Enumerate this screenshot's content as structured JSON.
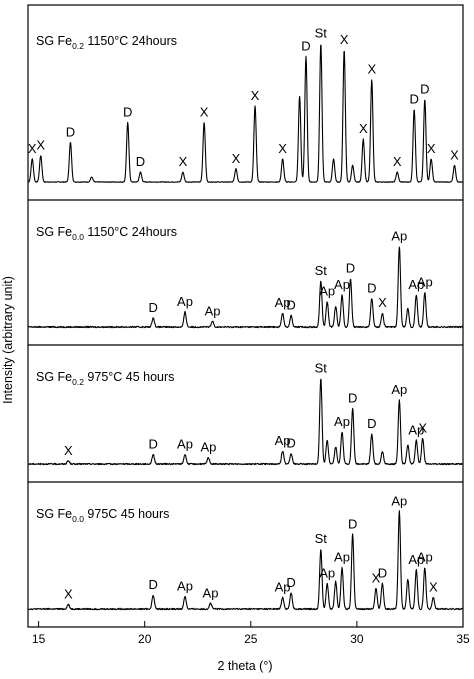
{
  "chart_data": {
    "type": "line",
    "xlabel": "2 theta (°)",
    "ylabel": "Intensity (arbitrary unit)",
    "xlim": [
      14.5,
      35
    ],
    "xticks": [
      15,
      20,
      25,
      30,
      35
    ],
    "panels": [
      {
        "title": {
          "prefix": "SG Fe",
          "subscript": "0.2",
          "suffix": " 1150°C 24hours"
        },
        "peaks": [
          {
            "x": 14.7,
            "h": 0.14,
            "label": "X"
          },
          {
            "x": 15.1,
            "h": 0.16,
            "label": "X"
          },
          {
            "x": 16.5,
            "h": 0.24,
            "label": "D"
          },
          {
            "x": 17.5,
            "h": 0.03
          },
          {
            "x": 19.2,
            "h": 0.36,
            "label": "D"
          },
          {
            "x": 19.8,
            "h": 0.06,
            "label": "D"
          },
          {
            "x": 21.8,
            "h": 0.06,
            "label": "X"
          },
          {
            "x": 22.8,
            "h": 0.36,
            "label": "X"
          },
          {
            "x": 24.3,
            "h": 0.08,
            "label": "X"
          },
          {
            "x": 25.2,
            "h": 0.46,
            "label": "X"
          },
          {
            "x": 26.5,
            "h": 0.14,
            "label": "X"
          },
          {
            "x": 27.3,
            "h": 0.52
          },
          {
            "x": 27.6,
            "h": 0.76,
            "label": "D"
          },
          {
            "x": 28.3,
            "h": 0.84,
            "label": "St"
          },
          {
            "x": 28.9,
            "h": 0.14
          },
          {
            "x": 29.4,
            "h": 0.8,
            "label": "X"
          },
          {
            "x": 29.8,
            "h": 0.1
          },
          {
            "x": 30.3,
            "h": 0.26,
            "label": "X"
          },
          {
            "x": 30.7,
            "h": 0.62,
            "label": "X"
          },
          {
            "x": 31.9,
            "h": 0.06,
            "label": "X"
          },
          {
            "x": 32.7,
            "h": 0.44,
            "label": "D"
          },
          {
            "x": 33.2,
            "h": 0.5,
            "label": "D"
          },
          {
            "x": 33.5,
            "h": 0.14,
            "label": "X"
          },
          {
            "x": 34.6,
            "h": 0.1,
            "label": "X"
          }
        ]
      },
      {
        "title": {
          "prefix": "SG Fe",
          "subscript": "0.0",
          "suffix": " 1150°C 24hours"
        },
        "peaks": [
          {
            "x": 20.4,
            "h": 0.08,
            "label": "D"
          },
          {
            "x": 21.9,
            "h": 0.13,
            "label": "Ap"
          },
          {
            "x": 23.2,
            "h": 0.05,
            "label": "Ap"
          },
          {
            "x": 26.5,
            "h": 0.12,
            "label": "Ap"
          },
          {
            "x": 26.9,
            "h": 0.1,
            "label": "D"
          },
          {
            "x": 28.3,
            "h": 0.4,
            "label": "St"
          },
          {
            "x": 28.6,
            "h": 0.22,
            "label": "Ap"
          },
          {
            "x": 29.0,
            "h": 0.18
          },
          {
            "x": 29.3,
            "h": 0.28,
            "label": "Ap"
          },
          {
            "x": 29.7,
            "h": 0.42,
            "label": "D"
          },
          {
            "x": 30.7,
            "h": 0.25,
            "label": "D"
          },
          {
            "x": 31.2,
            "h": 0.12,
            "label": "X"
          },
          {
            "x": 32.0,
            "h": 0.7,
            "label": "Ap"
          },
          {
            "x": 32.4,
            "h": 0.16
          },
          {
            "x": 32.8,
            "h": 0.28,
            "label": "Ap"
          },
          {
            "x": 33.2,
            "h": 0.3,
            "label": "Ap"
          }
        ]
      },
      {
        "title": {
          "prefix": "SG Fe",
          "subscript": "0.2",
          "suffix": " 975°C 45 hours"
        },
        "peaks": [
          {
            "x": 16.4,
            "h": 0.03,
            "label": "X"
          },
          {
            "x": 20.4,
            "h": 0.09,
            "label": "D"
          },
          {
            "x": 21.9,
            "h": 0.09,
            "label": "Ap"
          },
          {
            "x": 23.0,
            "h": 0.06,
            "label": "Ap"
          },
          {
            "x": 26.5,
            "h": 0.12,
            "label": "Ap"
          },
          {
            "x": 26.9,
            "h": 0.1,
            "label": "D"
          },
          {
            "x": 28.3,
            "h": 0.8,
            "label": "St"
          },
          {
            "x": 28.6,
            "h": 0.22
          },
          {
            "x": 29.0,
            "h": 0.16
          },
          {
            "x": 29.3,
            "h": 0.3,
            "label": "Ap"
          },
          {
            "x": 29.8,
            "h": 0.52,
            "label": "D"
          },
          {
            "x": 30.7,
            "h": 0.28,
            "label": "D"
          },
          {
            "x": 31.2,
            "h": 0.12
          },
          {
            "x": 32.0,
            "h": 0.6,
            "label": "Ap"
          },
          {
            "x": 32.4,
            "h": 0.18
          },
          {
            "x": 32.8,
            "h": 0.22,
            "label": "Ap"
          },
          {
            "x": 33.1,
            "h": 0.24,
            "label": "X"
          }
        ]
      },
      {
        "title": {
          "prefix": "SG Fe",
          "subscript": "0.0",
          "suffix": " 975C 45 hours"
        },
        "peaks": [
          {
            "x": 16.4,
            "h": 0.04,
            "label": "X"
          },
          {
            "x": 20.4,
            "h": 0.12,
            "label": "D"
          },
          {
            "x": 21.9,
            "h": 0.11,
            "label": "Ap"
          },
          {
            "x": 23.1,
            "h": 0.05,
            "label": "Ap"
          },
          {
            "x": 26.5,
            "h": 0.1,
            "label": "Ap"
          },
          {
            "x": 26.9,
            "h": 0.14,
            "label": "D"
          },
          {
            "x": 28.3,
            "h": 0.52,
            "label": "St"
          },
          {
            "x": 28.6,
            "h": 0.22,
            "label": "Ap"
          },
          {
            "x": 29.0,
            "h": 0.24
          },
          {
            "x": 29.3,
            "h": 0.36,
            "label": "Ap"
          },
          {
            "x": 29.8,
            "h": 0.65,
            "label": "D"
          },
          {
            "x": 30.9,
            "h": 0.18,
            "label": "X"
          },
          {
            "x": 31.2,
            "h": 0.22,
            "label": "D"
          },
          {
            "x": 32.0,
            "h": 0.85,
            "label": "Ap"
          },
          {
            "x": 32.4,
            "h": 0.26
          },
          {
            "x": 32.8,
            "h": 0.34,
            "label": "Ap"
          },
          {
            "x": 33.2,
            "h": 0.36,
            "label": "Ap"
          },
          {
            "x": 33.6,
            "h": 0.1,
            "label": "X"
          }
        ]
      }
    ]
  }
}
